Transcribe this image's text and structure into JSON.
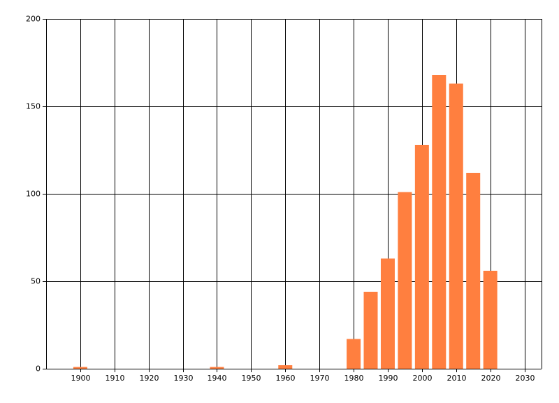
{
  "chart_data": {
    "type": "bar",
    "x": [
      1900,
      1940,
      1960,
      1980,
      1985,
      1990,
      1995,
      2000,
      2005,
      2010,
      2015,
      2020
    ],
    "values": [
      1,
      1,
      2,
      17,
      44,
      63,
      101,
      128,
      168,
      163,
      112,
      56
    ],
    "color": "#ff7f3f",
    "xlim": [
      1890,
      2035
    ],
    "xticks": [
      1900,
      1910,
      1920,
      1930,
      1940,
      1950,
      1960,
      1970,
      1980,
      1990,
      2000,
      2010,
      2020,
      2030
    ],
    "ylim": [
      0,
      200
    ],
    "yticks": [
      0,
      50,
      100,
      150,
      200
    ],
    "grid": true
  }
}
